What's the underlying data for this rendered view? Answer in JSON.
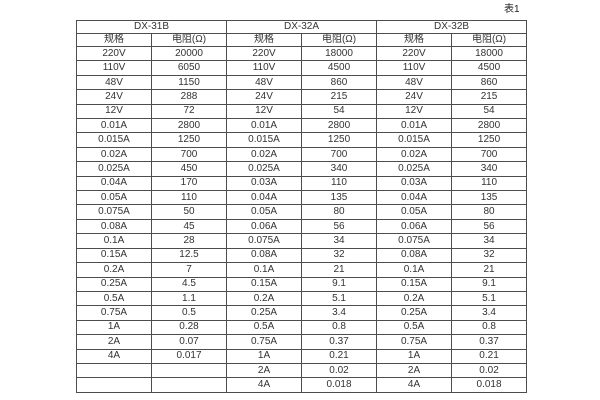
{
  "caption": "表1",
  "colors": {
    "background": "#ffffff",
    "border": "#4d4d4d",
    "text": "#333333"
  },
  "table": {
    "groups": [
      {
        "name": "DX-31B",
        "columns": [
          "规格",
          "电阻(Ω)"
        ],
        "rows": [
          [
            "220V",
            "20000"
          ],
          [
            "110V",
            "6050"
          ],
          [
            "48V",
            "1150"
          ],
          [
            "24V",
            "288"
          ],
          [
            "12V",
            "72"
          ],
          [
            "0.01A",
            "2800"
          ],
          [
            "0.015A",
            "1250"
          ],
          [
            "0.02A",
            "700"
          ],
          [
            "0.025A",
            "450"
          ],
          [
            "0.04A",
            "170"
          ],
          [
            "0.05A",
            "110"
          ],
          [
            "0.075A",
            "50"
          ],
          [
            "0.08A",
            "45"
          ],
          [
            "0.1A",
            "28"
          ],
          [
            "0.15A",
            "12.5"
          ],
          [
            "0.2A",
            "7"
          ],
          [
            "0.25A",
            "4.5"
          ],
          [
            "0.5A",
            "1.1"
          ],
          [
            "0.75A",
            "0.5"
          ],
          [
            "1A",
            "0.28"
          ],
          [
            "2A",
            "0.07"
          ],
          [
            "4A",
            "0.017"
          ],
          [
            "",
            ""
          ],
          [
            "",
            ""
          ]
        ]
      },
      {
        "name": "DX-32A",
        "columns": [
          "规格",
          "电阻(Ω)"
        ],
        "rows": [
          [
            "220V",
            "18000"
          ],
          [
            "110V",
            "4500"
          ],
          [
            "48V",
            "860"
          ],
          [
            "24V",
            "215"
          ],
          [
            "12V",
            "54"
          ],
          [
            "0.01A",
            "2800"
          ],
          [
            "0.015A",
            "1250"
          ],
          [
            "0.02A",
            "700"
          ],
          [
            "0.025A",
            "340"
          ],
          [
            "0.03A",
            "110"
          ],
          [
            "0.04A",
            "135"
          ],
          [
            "0.05A",
            "80"
          ],
          [
            "0.06A",
            "56"
          ],
          [
            "0.075A",
            "34"
          ],
          [
            "0.08A",
            "32"
          ],
          [
            "0.1A",
            "21"
          ],
          [
            "0.15A",
            "9.1"
          ],
          [
            "0.2A",
            "5.1"
          ],
          [
            "0.25A",
            "3.4"
          ],
          [
            "0.5A",
            "0.8"
          ],
          [
            "0.75A",
            "0.37"
          ],
          [
            "1A",
            "0.21"
          ],
          [
            "2A",
            "0.02"
          ],
          [
            "4A",
            "0.018"
          ]
        ]
      },
      {
        "name": "DX-32B",
        "columns": [
          "规格",
          "电阻(Ω)"
        ],
        "rows": [
          [
            "220V",
            "18000"
          ],
          [
            "110V",
            "4500"
          ],
          [
            "48V",
            "860"
          ],
          [
            "24V",
            "215"
          ],
          [
            "12V",
            "54"
          ],
          [
            "0.01A",
            "2800"
          ],
          [
            "0.015A",
            "1250"
          ],
          [
            "0.02A",
            "700"
          ],
          [
            "0.025A",
            "340"
          ],
          [
            "0.03A",
            "110"
          ],
          [
            "0.04A",
            "135"
          ],
          [
            "0.05A",
            "80"
          ],
          [
            "0.06A",
            "56"
          ],
          [
            "0.075A",
            "34"
          ],
          [
            "0.08A",
            "32"
          ],
          [
            "0.1A",
            "21"
          ],
          [
            "0.15A",
            "9.1"
          ],
          [
            "0.2A",
            "5.1"
          ],
          [
            "0.25A",
            "3.4"
          ],
          [
            "0.5A",
            "0.8"
          ],
          [
            "0.75A",
            "0.37"
          ],
          [
            "1A",
            "0.21"
          ],
          [
            "2A",
            "0.02"
          ],
          [
            "4A",
            "0.018"
          ]
        ]
      }
    ]
  }
}
